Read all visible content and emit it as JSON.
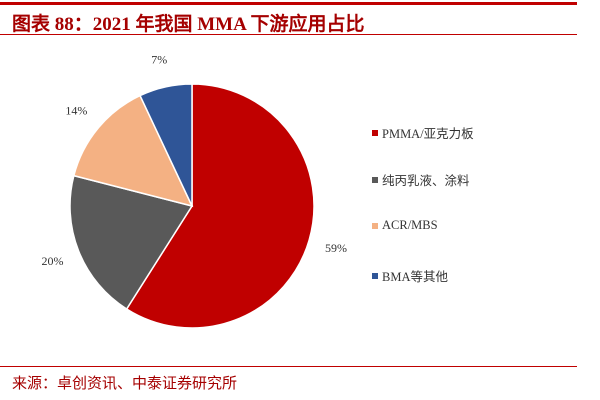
{
  "header": {
    "title": "图表 88：2021 年我国 MMA 下游应用占比"
  },
  "footer": {
    "source": "来源：卓创资讯、中泰证券研究所"
  },
  "chart_data": {
    "type": "pie",
    "start_angle": "12 o'clock, clockwise",
    "legend_position": "right",
    "slices": [
      {
        "name": "PMMA/亚克力板",
        "value": 59,
        "label": "59%",
        "color": "#C00000"
      },
      {
        "name": "纯丙乳液、涂料",
        "value": 20,
        "label": "20%",
        "color": "#595959"
      },
      {
        "name": "ACR/MBS",
        "value": 14,
        "label": "14%",
        "color": "#F4B183"
      },
      {
        "name": "BMA等其他",
        "value": 7,
        "label": "7%",
        "color": "#2F5597"
      }
    ]
  }
}
